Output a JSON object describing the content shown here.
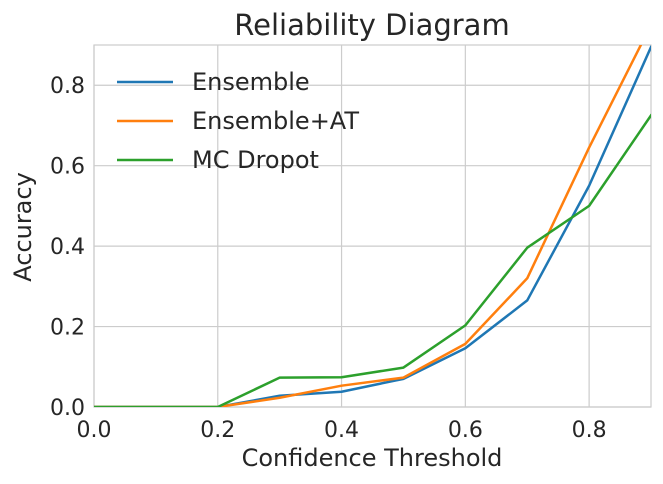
{
  "chart_data": {
    "type": "line",
    "title": "Reliability Diagram",
    "xlabel": "Confidence Threshold",
    "ylabel": "Accuracy",
    "xlim": [
      0.0,
      0.9
    ],
    "ylim": [
      0.0,
      0.9
    ],
    "xticks": [
      0.0,
      0.2,
      0.4,
      0.6,
      0.8
    ],
    "xtick_labels": [
      "0.0",
      "0.2",
      "0.4",
      "0.6",
      "0.8"
    ],
    "yticks": [
      0.0,
      0.2,
      0.4,
      0.6,
      0.8
    ],
    "ytick_labels": [
      "0.0",
      "0.2",
      "0.4",
      "0.6",
      "0.8"
    ],
    "grid": true,
    "legend_position": "top-left",
    "x": [
      0.0,
      0.1,
      0.2,
      0.3,
      0.4,
      0.5,
      0.6,
      0.7,
      0.8,
      0.9
    ],
    "series": [
      {
        "name": "Ensemble",
        "color": "#1f77b4",
        "values": [
          0.0,
          0.0,
          0.0,
          0.028,
          0.038,
          0.07,
          0.146,
          0.265,
          0.55,
          0.895
        ]
      },
      {
        "name": "Ensemble+AT",
        "color": "#ff7f0e",
        "values": [
          0.0,
          0.0,
          0.0,
          0.023,
          0.053,
          0.073,
          0.157,
          0.32,
          0.645,
          0.95
        ]
      },
      {
        "name": "MC Dropot",
        "color": "#2ca02c",
        "values": [
          0.0,
          0.0,
          0.0,
          0.073,
          0.074,
          0.098,
          0.203,
          0.396,
          0.5,
          0.725
        ]
      }
    ]
  }
}
